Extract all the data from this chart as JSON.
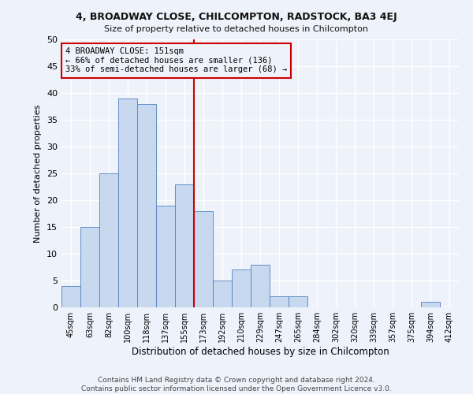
{
  "title1": "4, BROADWAY CLOSE, CHILCOMPTON, RADSTOCK, BA3 4EJ",
  "title2": "Size of property relative to detached houses in Chilcompton",
  "xlabel": "Distribution of detached houses by size in Chilcompton",
  "ylabel": "Number of detached properties",
  "categories": [
    "45sqm",
    "63sqm",
    "82sqm",
    "100sqm",
    "118sqm",
    "137sqm",
    "155sqm",
    "173sqm",
    "192sqm",
    "210sqm",
    "229sqm",
    "247sqm",
    "265sqm",
    "284sqm",
    "302sqm",
    "320sqm",
    "339sqm",
    "357sqm",
    "375sqm",
    "394sqm",
    "412sqm"
  ],
  "values": [
    4,
    15,
    25,
    39,
    38,
    19,
    23,
    18,
    5,
    7,
    8,
    2,
    2,
    0,
    0,
    0,
    0,
    0,
    0,
    1,
    0
  ],
  "bar_color": "#c8d9ef",
  "bar_edge_color": "#5080c0",
  "annotation_line1": "4 BROADWAY CLOSE: 151sqm",
  "annotation_line2": "← 66% of detached houses are smaller (136)",
  "annotation_line3": "33% of semi-detached houses are larger (68) →",
  "annotation_box_color": "#cc0000",
  "vline_color": "#cc0000",
  "vline_index": 6.5,
  "ylim": [
    0,
    50
  ],
  "yticks": [
    0,
    5,
    10,
    15,
    20,
    25,
    30,
    35,
    40,
    45,
    50
  ],
  "background_color": "#eef2fa",
  "grid_color": "#ffffff",
  "footer": "Contains HM Land Registry data © Crown copyright and database right 2024.\nContains public sector information licensed under the Open Government Licence v3.0."
}
